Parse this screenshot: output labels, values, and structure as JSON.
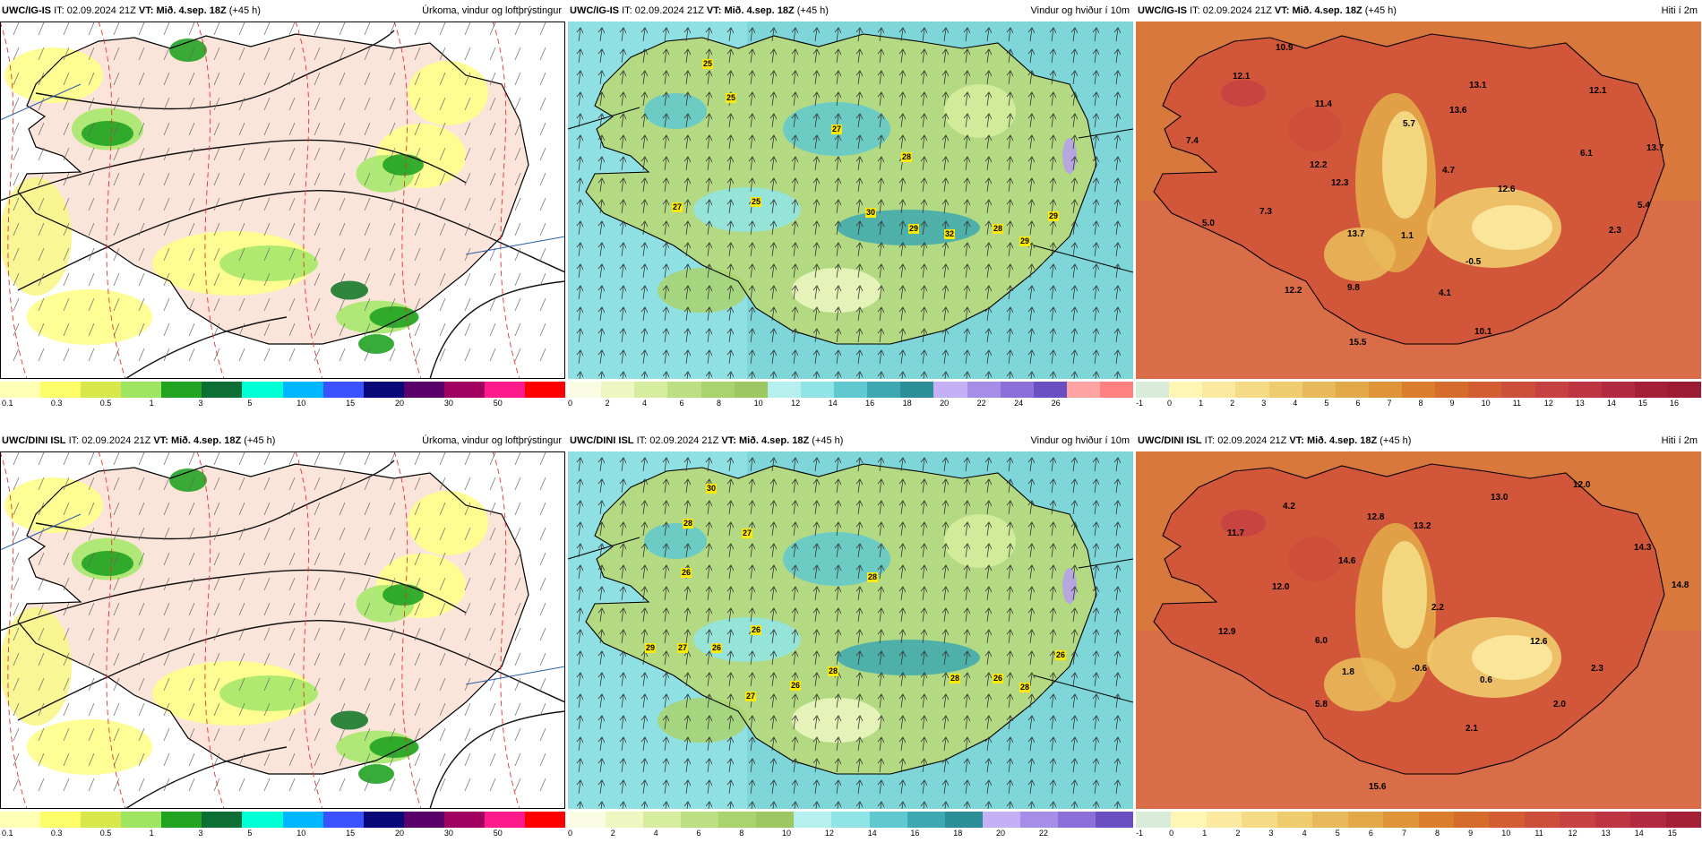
{
  "panels": [
    {
      "id": "igis_precip",
      "kind": "precip",
      "header": {
        "model": "UWC/IG-IS",
        "it_label": "IT:",
        "it": "02.09.2024 21Z",
        "vt_label": "VT:",
        "vt": "Mið. 4.sep. 18Z",
        "lead": "(+45 h)",
        "title": "Úrkoma, vindur og loftþrýstingur"
      },
      "colorbar": {
        "colors": [
          "#ffffb3",
          "#fdfd6a",
          "#d8e84a",
          "#9ee661",
          "#21a521",
          "#0e6f34",
          "#00ffd5",
          "#00b7ff",
          "#3b52ff",
          "#090979",
          "#5a006b",
          "#a0005f",
          "#ff1a8c",
          "#ff0000"
        ],
        "ticks": [
          "0.1",
          "0.3",
          "0.5",
          "1",
          "3",
          "5",
          "10",
          "15",
          "20",
          "30",
          "50"
        ]
      },
      "labels": []
    },
    {
      "id": "igis_wind",
      "kind": "wind",
      "header": {
        "model": "UWC/IG-IS",
        "it_label": "IT:",
        "it": "02.09.2024 21Z",
        "vt_label": "VT:",
        "vt": "Mið. 4.sep. 18Z",
        "lead": "(+45 h)",
        "title": "Vindur og hviður í 10m"
      },
      "colorbar": {
        "colors": [
          "#fafde4",
          "#eef7c2",
          "#d6eda0",
          "#bcdf83",
          "#a9d46d",
          "#9dc861",
          "#b5f0ef",
          "#8fe5e6",
          "#5fc9cf",
          "#3da8b1",
          "#2c8f97",
          "#c3b0f5",
          "#a58de8",
          "#8c6fd9",
          "#6a4fc3",
          "#ffa3a3",
          "#ff8080"
        ],
        "ticks": [
          "0",
          "2",
          "4",
          "6",
          "8",
          "10",
          "12",
          "14",
          "16",
          "18",
          "20",
          "22",
          "24",
          "26"
        ]
      },
      "labels": [
        {
          "t": "25"
        },
        {
          "t": "25"
        },
        {
          "t": "27"
        },
        {
          "t": "28"
        },
        {
          "t": "27"
        },
        {
          "t": "25"
        },
        {
          "t": "30"
        },
        {
          "t": "29"
        },
        {
          "t": "32"
        },
        {
          "t": "28"
        },
        {
          "t": "29"
        },
        {
          "t": "29"
        }
      ]
    },
    {
      "id": "igis_temp",
      "kind": "temp",
      "header": {
        "model": "UWC/IG-IS",
        "it_label": "IT:",
        "it": "02.09.2024 21Z",
        "vt_label": "VT:",
        "vt": "Mið. 4.sep. 18Z",
        "lead": "(+45 h)",
        "title": "Hiti í 2m"
      },
      "colorbar": {
        "colors": [
          "#d8ecd9",
          "#fff5b5",
          "#fbe9a0",
          "#f5db86",
          "#efcc6e",
          "#e8b95a",
          "#e3a848",
          "#df9438",
          "#d97e2c",
          "#d56b2c",
          "#d25d33",
          "#cc4f3b",
          "#c64242",
          "#bd3442",
          "#b22a3f",
          "#a42037",
          "#9b1b33"
        ],
        "ticks": [
          "-1",
          "0",
          "1",
          "2",
          "3",
          "4",
          "5",
          "6",
          "7",
          "8",
          "9",
          "10",
          "11",
          "12",
          "13",
          "14",
          "15",
          "16"
        ]
      },
      "labels": [
        {
          "t": "10.9"
        },
        {
          "t": "12.1"
        },
        {
          "t": "11.4"
        },
        {
          "t": "13.1"
        },
        {
          "t": "12.1"
        },
        {
          "t": "7.4"
        },
        {
          "t": "5.7"
        },
        {
          "t": "13.6"
        },
        {
          "t": "13.7"
        },
        {
          "t": "12.2"
        },
        {
          "t": "4.7"
        },
        {
          "t": "6.1"
        },
        {
          "t": "12.3"
        },
        {
          "t": "12.6"
        },
        {
          "t": "7.3"
        },
        {
          "t": "5.4"
        },
        {
          "t": "5.0"
        },
        {
          "t": "13.7"
        },
        {
          "t": "1.1"
        },
        {
          "t": "2.3"
        },
        {
          "t": "-0.5"
        },
        {
          "t": "9.8"
        },
        {
          "t": "4.1"
        },
        {
          "t": "12.2"
        },
        {
          "t": "10.1"
        },
        {
          "t": "15.5"
        }
      ]
    },
    {
      "id": "dini_precip",
      "kind": "precip",
      "header": {
        "model": "UWC/DINI ISL",
        "it_label": "IT:",
        "it": "02.09.2024 21Z",
        "vt_label": "VT:",
        "vt": "Mið. 4.sep. 18Z",
        "lead": "(+45 h)",
        "title": "Úrkoma, vindur og loftþrýstingur"
      },
      "colorbar": {
        "colors": [
          "#ffffb3",
          "#fdfd6a",
          "#d8e84a",
          "#9ee661",
          "#21a521",
          "#0e6f34",
          "#00ffd5",
          "#00b7ff",
          "#3b52ff",
          "#090979",
          "#5a006b",
          "#a0005f",
          "#ff1a8c",
          "#ff0000"
        ],
        "ticks": [
          "0.1",
          "0.3",
          "0.5",
          "1",
          "3",
          "5",
          "10",
          "15",
          "20",
          "30",
          "50"
        ]
      },
      "labels": []
    },
    {
      "id": "dini_wind",
      "kind": "wind",
      "header": {
        "model": "UWC/DINI ISL",
        "it_label": "IT:",
        "it": "02.09.2024 21Z",
        "vt_label": "VT:",
        "vt": "Mið. 4.sep. 18Z",
        "lead": "(+45 h)",
        "title": "Vindur og hviður í 10m"
      },
      "colorbar": {
        "colors": [
          "#fafde4",
          "#eef7c2",
          "#d6eda0",
          "#bcdf83",
          "#a9d46d",
          "#9dc861",
          "#b5f0ef",
          "#8fe5e6",
          "#5fc9cf",
          "#3da8b1",
          "#2c8f97",
          "#c3b0f5",
          "#a58de8",
          "#8c6fd9",
          "#6a4fc3"
        ],
        "ticks": [
          "0",
          "2",
          "4",
          "6",
          "8",
          "10",
          "12",
          "14",
          "16",
          "18",
          "20",
          "22"
        ]
      },
      "labels": [
        {
          "t": "30"
        },
        {
          "t": "28"
        },
        {
          "t": "27"
        },
        {
          "t": "26"
        },
        {
          "t": "26"
        },
        {
          "t": "29"
        },
        {
          "t": "27"
        },
        {
          "t": "26"
        },
        {
          "t": "28"
        },
        {
          "t": "26"
        },
        {
          "t": "27"
        },
        {
          "t": "28"
        },
        {
          "t": "28"
        },
        {
          "t": "26"
        },
        {
          "t": "28"
        },
        {
          "t": "26"
        }
      ]
    },
    {
      "id": "dini_temp",
      "kind": "temp",
      "header": {
        "model": "UWC/DINI ISL",
        "it_label": "IT:",
        "it": "02.09.2024 21Z",
        "vt_label": "VT:",
        "vt": "Mið. 4.sep. 18Z",
        "lead": "(+45 h)",
        "title": "Hiti í 2m"
      },
      "colorbar": {
        "colors": [
          "#d8ecd9",
          "#fff5b5",
          "#fbe9a0",
          "#f5db86",
          "#efcc6e",
          "#e8b95a",
          "#e3a848",
          "#df9438",
          "#d97e2c",
          "#d56b2c",
          "#d25d33",
          "#cc4f3b",
          "#c64242",
          "#bd3442",
          "#b22a3f",
          "#a42037"
        ],
        "ticks": [
          "-1",
          "0",
          "1",
          "2",
          "3",
          "4",
          "5",
          "6",
          "7",
          "8",
          "9",
          "10",
          "11",
          "12",
          "13",
          "14",
          "15"
        ]
      },
      "labels": [
        {
          "t": "12.0"
        },
        {
          "t": "4.2"
        },
        {
          "t": "13.0"
        },
        {
          "t": "11.7"
        },
        {
          "t": "12.8"
        },
        {
          "t": "13.2"
        },
        {
          "t": "14.3"
        },
        {
          "t": "14.6"
        },
        {
          "t": "12.0"
        },
        {
          "t": "2.2"
        },
        {
          "t": "14.8"
        },
        {
          "t": "12.9"
        },
        {
          "t": "6.0"
        },
        {
          "t": "12.6"
        },
        {
          "t": "1.8"
        },
        {
          "t": "-0.6"
        },
        {
          "t": "2.3"
        },
        {
          "t": "0.6"
        },
        {
          "t": "5.8"
        },
        {
          "t": "2.0"
        },
        {
          "t": "2.1"
        },
        {
          "t": "15.6"
        }
      ]
    }
  ]
}
